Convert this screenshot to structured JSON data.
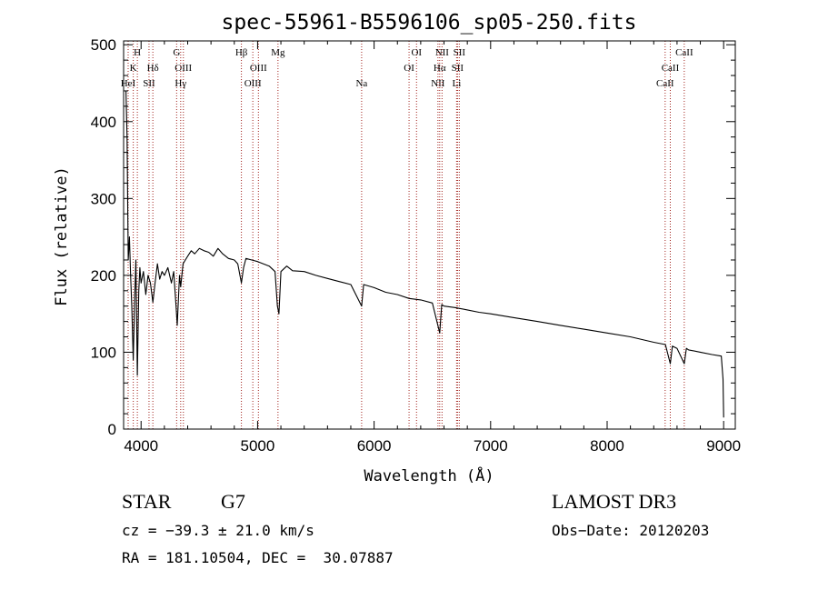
{
  "chart_data": {
    "type": "line",
    "title": "spec-55961-B5596106_sp05-250.fits",
    "xlabel": "Wavelength (Å)",
    "ylabel": "Flux (relative)",
    "xlim": [
      3850,
      9100
    ],
    "ylim": [
      0,
      505
    ],
    "x_ticks": [
      4000,
      5000,
      6000,
      7000,
      8000,
      9000
    ],
    "y_ticks": [
      0,
      100,
      200,
      300,
      400,
      500
    ],
    "series": [
      {
        "name": "spectrum",
        "x": [
          3870,
          3880,
          3890,
          3900,
          3910,
          3920,
          3933,
          3945,
          3955,
          3968,
          3980,
          3990,
          4000,
          4020,
          4040,
          4060,
          4080,
          4101,
          4120,
          4140,
          4160,
          4180,
          4200,
          4230,
          4260,
          4280,
          4300,
          4310,
          4330,
          4340,
          4360,
          4380,
          4400,
          4430,
          4460,
          4500,
          4540,
          4580,
          4620,
          4660,
          4700,
          4750,
          4800,
          4830,
          4861,
          4880,
          4900,
          4950,
          5000,
          5050,
          5100,
          5150,
          5170,
          5183,
          5200,
          5250,
          5300,
          5400,
          5500,
          5600,
          5700,
          5800,
          5893,
          5910,
          6000,
          6100,
          6200,
          6300,
          6400,
          6500,
          6563,
          6580,
          6600,
          6700,
          6800,
          6900,
          7000,
          7200,
          7400,
          7600,
          7800,
          8000,
          8200,
          8400,
          8500,
          8542,
          8560,
          8600,
          8662,
          8680,
          8700,
          8800,
          8900,
          8980,
          8995,
          9000
        ],
        "y": [
          440,
          380,
          220,
          250,
          200,
          160,
          90,
          170,
          220,
          70,
          180,
          210,
          190,
          205,
          175,
          200,
          190,
          165,
          190,
          215,
          195,
          205,
          200,
          210,
          190,
          205,
          160,
          135,
          200,
          185,
          215,
          220,
          225,
          232,
          228,
          235,
          232,
          230,
          225,
          235,
          228,
          222,
          220,
          215,
          190,
          210,
          222,
          220,
          218,
          215,
          212,
          205,
          160,
          150,
          205,
          212,
          206,
          205,
          200,
          196,
          192,
          188,
          160,
          188,
          184,
          178,
          175,
          170,
          168,
          164,
          125,
          162,
          160,
          158,
          155,
          152,
          150,
          145,
          140,
          135,
          130,
          125,
          120,
          113,
          110,
          85,
          108,
          105,
          85,
          105,
          103,
          100,
          97,
          95,
          65,
          15
        ]
      }
    ],
    "line_markers": [
      {
        "name": "H",
        "wavelength": 3968,
        "row": 0
      },
      {
        "name": "K",
        "wavelength": 3933,
        "row": 1
      },
      {
        "name": "HeI",
        "wavelength": 3889,
        "row": 2
      },
      {
        "name": "SII",
        "wavelength": 4068,
        "row": 2
      },
      {
        "name": "Hδ",
        "wavelength": 4101,
        "row": 1
      },
      {
        "name": "G",
        "wavelength": 4305,
        "row": 0
      },
      {
        "name": "OIII",
        "wavelength": 4363,
        "row": 1
      },
      {
        "name": "Hγ",
        "wavelength": 4340,
        "row": 2
      },
      {
        "name": "Hβ",
        "wavelength": 4861,
        "row": 0
      },
      {
        "name": "OIII",
        "wavelength": 4959,
        "row": 2
      },
      {
        "name": "OIII",
        "wavelength": 5007,
        "row": 1
      },
      {
        "name": "Mg",
        "wavelength": 5175,
        "row": 0
      },
      {
        "name": "Na",
        "wavelength": 5893,
        "row": 2
      },
      {
        "name": "OI",
        "wavelength": 6300,
        "row": 1
      },
      {
        "name": "OI",
        "wavelength": 6364,
        "row": 0
      },
      {
        "name": "NII",
        "wavelength": 6548,
        "row": 2
      },
      {
        "name": "NII",
        "wavelength": 6583,
        "row": 0
      },
      {
        "name": "Hα",
        "wavelength": 6563,
        "row": 1
      },
      {
        "name": "SII",
        "wavelength": 6716,
        "row": 1
      },
      {
        "name": "SII",
        "wavelength": 6731,
        "row": 0
      },
      {
        "name": "Li",
        "wavelength": 6708,
        "row": 2
      },
      {
        "name": "CaII",
        "wavelength": 8498,
        "row": 2
      },
      {
        "name": "CaII",
        "wavelength": 8542,
        "row": 1
      },
      {
        "name": "CaII",
        "wavelength": 8662,
        "row": 0
      }
    ]
  },
  "info": {
    "object_class": "STAR",
    "subclass": "G7",
    "survey": "LAMOST DR3",
    "redshift_text": "cz = −39.3 ± 21.0 km/s",
    "obs_date_text": "Obs−Date: 20120203",
    "coords_text": "RA = 181.10504, DEC =  30.07887"
  },
  "colors": {
    "spectrum": "#000000",
    "marker": "#a0201a",
    "axes": "#000000"
  }
}
